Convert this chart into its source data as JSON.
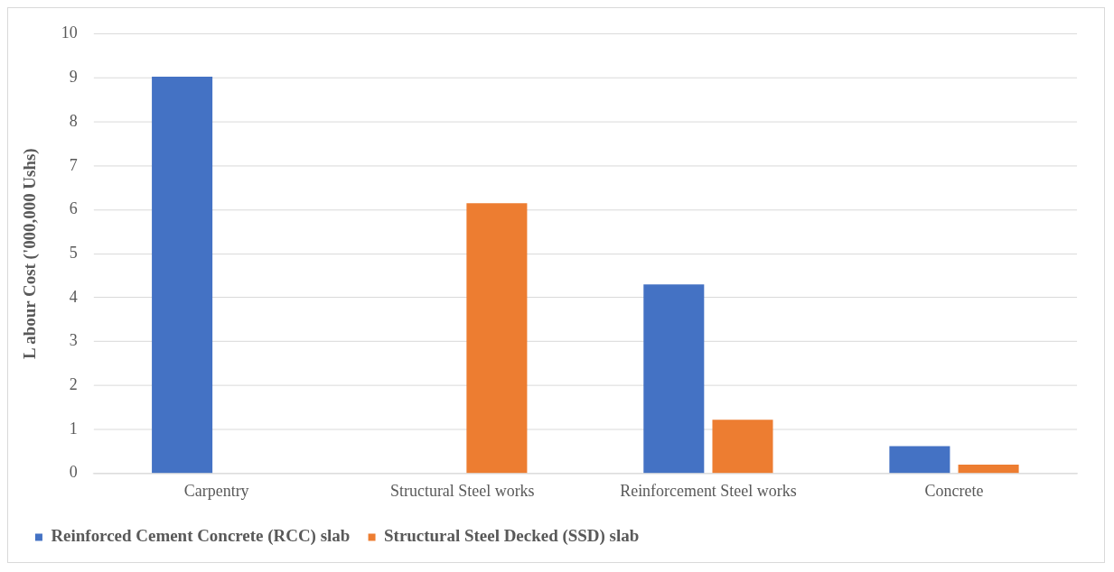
{
  "chart_data": {
    "type": "bar",
    "ylabel": "L abour Cost ('000,000 Ushs)",
    "categories": [
      "Carpentry",
      "Structural Steel works",
      "Reinforcement Steel works",
      "Concrete"
    ],
    "series": [
      {
        "name": "Reinforced Cement Concrete (RCC) slab",
        "color": "#4472c4",
        "values": [
          9.03,
          0,
          4.3,
          0.62
        ]
      },
      {
        "name": "Structural Steel Decked (SSD) slab",
        "color": "#ed7d31",
        "values": [
          0,
          6.15,
          1.22,
          0.2
        ]
      }
    ],
    "ylim": [
      0,
      10
    ],
    "yticks": [
      0,
      1,
      2,
      3,
      4,
      5,
      6,
      7,
      8,
      9,
      10
    ],
    "grid": "y",
    "legend": "bottom"
  }
}
